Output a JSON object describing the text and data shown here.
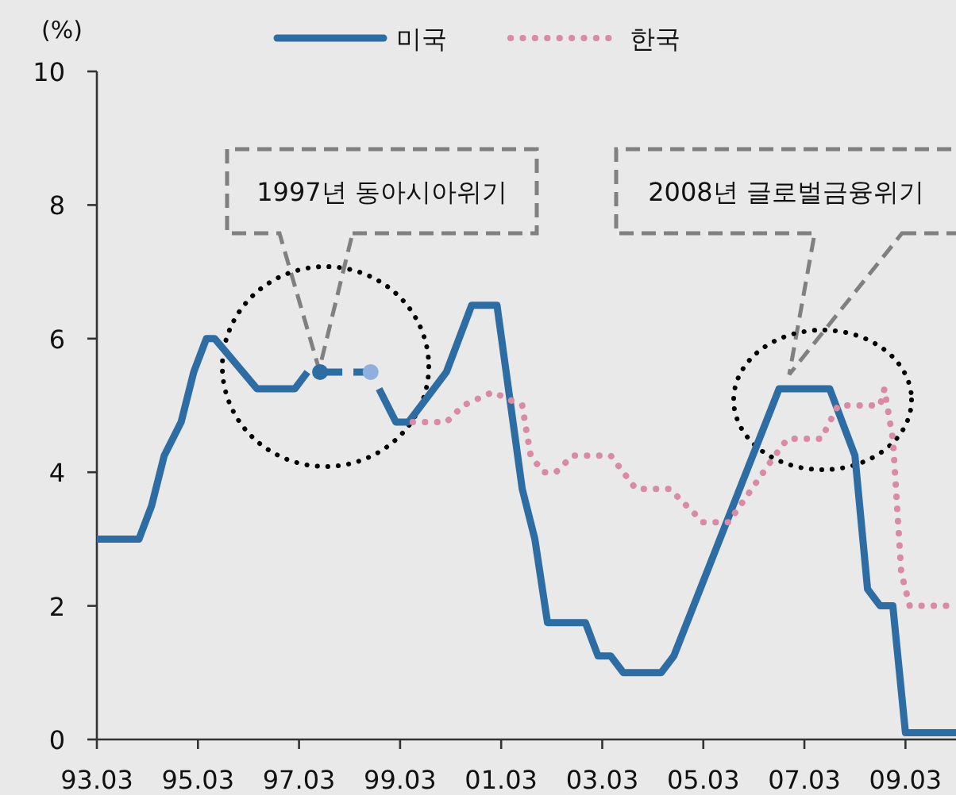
{
  "chart_data": {
    "type": "line",
    "ylabel": "(%)",
    "xlim": [
      "1993-03",
      "2010-03"
    ],
    "ylim": [
      0,
      10
    ],
    "yticks": [
      0,
      2,
      4,
      6,
      8,
      10
    ],
    "xticks": [
      {
        "value": "1993-03",
        "label": "93.03"
      },
      {
        "value": "1995-03",
        "label": "95.03"
      },
      {
        "value": "1997-03",
        "label": "97.03"
      },
      {
        "value": "1999-03",
        "label": "99.03"
      },
      {
        "value": "2001-03",
        "label": "01.03"
      },
      {
        "value": "2003-03",
        "label": "03.03"
      },
      {
        "value": "2005-03",
        "label": "05.03"
      },
      {
        "value": "2007-03",
        "label": "07.03"
      },
      {
        "value": "2009-03",
        "label": "09.03"
      }
    ],
    "legend": "top",
    "grid": false,
    "series": [
      {
        "name": "미국",
        "color": "#2e6da4",
        "line_style": "solid",
        "x": [
          "1993-03",
          "1994-01",
          "1994-04",
          "1994-07",
          "1994-11",
          "1995-02",
          "1995-05",
          "1995-07",
          "1996-05",
          "1997-02",
          "1997-05",
          "1997-08",
          "1998-08",
          "1998-10",
          "1999-02",
          "1999-05",
          "2000-02",
          "2000-08",
          "2001-02",
          "2001-08",
          "2001-11",
          "2002-02",
          "2002-11",
          "2003-02",
          "2003-05",
          "2003-08",
          "2004-05",
          "2004-08",
          "2006-09",
          "2007-09",
          "2008-03",
          "2008-06",
          "2008-09",
          "2008-12",
          "2009-03",
          "2010-03"
        ],
        "values": [
          3.0,
          3.0,
          3.5,
          4.25,
          4.75,
          5.5,
          6.0,
          6.0,
          5.25,
          5.25,
          5.5,
          null,
          null,
          5.25,
          4.75,
          4.75,
          5.5,
          6.5,
          6.5,
          3.75,
          3.0,
          1.75,
          1.75,
          1.25,
          1.25,
          1.0,
          1.0,
          1.25,
          5.25,
          5.25,
          4.25,
          2.25,
          2.0,
          2.0,
          0.1,
          0.1
        ]
      },
      {
        "color": "#2e6da4",
        "line_style": "dashed",
        "marker": "circle",
        "colors": [
          "#2e6da4",
          "#8fb0dc"
        ],
        "x": [
          "1997-08",
          "1998-08"
        ],
        "values": [
          5.5,
          5.5
        ]
      },
      {
        "name": "한국",
        "color": "#d98aa4",
        "line_style": "dotted",
        "x": [
          "1999-06",
          "2000-02",
          "2000-06",
          "2001-01",
          "2001-08",
          "2001-10",
          "2002-01",
          "2002-04",
          "2002-08",
          "2003-05",
          "2003-11",
          "2004-07",
          "2005-03",
          "2005-09",
          "2006-08",
          "2006-11",
          "2007-07",
          "2007-11",
          "2008-09",
          "2008-10",
          "2008-12",
          "2009-01",
          "2009-02",
          "2009-04",
          "2010-03"
        ],
        "values": [
          4.75,
          4.75,
          5.0,
          5.2,
          5.0,
          4.25,
          4.0,
          4.0,
          4.25,
          4.25,
          3.75,
          3.75,
          3.25,
          3.25,
          4.25,
          4.5,
          4.5,
          5.0,
          5.0,
          5.25,
          4.5,
          3.5,
          2.5,
          2.0,
          2.0
        ]
      }
    ],
    "annotations": [
      "1997년 동아시아위기",
      "2008년 글로벌금융위기"
    ]
  }
}
